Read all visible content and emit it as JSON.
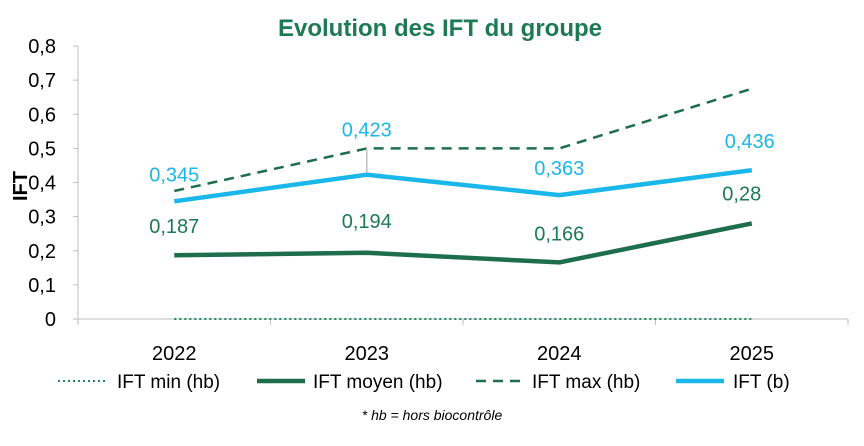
{
  "colors": {
    "title": "#1e7a55",
    "dark_green": "#1e6e4e",
    "label_green": "#1e7a55",
    "light_blue": "#1ab7ea",
    "axis": "#bfbfbf",
    "dotted_green": "#1e8a5e"
  },
  "chart_data": {
    "type": "line",
    "title": "Evolution des IFT du groupe",
    "ylabel": "IFT",
    "xlabel": "",
    "ylim": [
      0,
      0.8
    ],
    "yticks": [
      "0",
      "0,1",
      "0,2",
      "0,3",
      "0,4",
      "0,5",
      "0,6",
      "0,7",
      "0,8"
    ],
    "categories": [
      "2022",
      "2023",
      "2024",
      "2025"
    ],
    "series": [
      {
        "name": "IFT min (hb)",
        "style": "dotted",
        "color_key": "dotted_green",
        "values": [
          0,
          0,
          0,
          0
        ],
        "labels": [
          "",
          "",
          "",
          ""
        ]
      },
      {
        "name": "IFT moyen (hb)",
        "style": "solid-thick",
        "color_key": "dark_green",
        "values": [
          0.187,
          0.194,
          0.166,
          0.28
        ],
        "labels": [
          "0,187",
          "0,194",
          "0,166",
          "0,28"
        ]
      },
      {
        "name": "IFT max (hb)",
        "style": "dashed",
        "color_key": "dark_green",
        "values": [
          0.375,
          0.5,
          0.5,
          0.675
        ],
        "labels": [
          "",
          "",
          "",
          ""
        ]
      },
      {
        "name": "IFT (b)",
        "style": "solid-thick",
        "color_key": "light_blue",
        "values": [
          0.345,
          0.423,
          0.363,
          0.436
        ],
        "labels": [
          "0,345",
          "0,423",
          "0,363",
          "0,436"
        ]
      }
    ],
    "legend_position": "bottom",
    "grid": false,
    "footnote": "* hb = hors biocontrôle"
  }
}
